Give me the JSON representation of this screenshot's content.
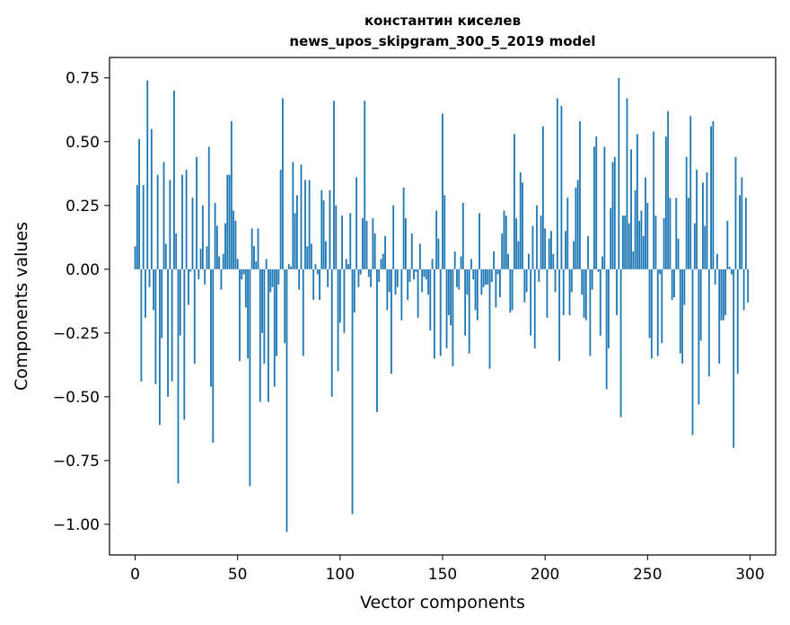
{
  "chart_data": {
    "type": "bar",
    "title": "константин киселев",
    "subtitle": "news_upos_skipgram_300_5_2019 model",
    "xlabel": "Vector components",
    "ylabel": "Components values",
    "xlim": [
      -12.5,
      312.5
    ],
    "ylim": [
      -1.12,
      0.83
    ],
    "xticks": [
      0,
      50,
      100,
      150,
      200,
      250,
      300
    ],
    "xtick_labels": [
      "0",
      "50",
      "100",
      "150",
      "200",
      "250",
      "300"
    ],
    "yticks": [
      0.75,
      0.5,
      0.25,
      0.0,
      -0.25,
      -0.5,
      -0.75,
      -1.0
    ],
    "ytick_labels": [
      "0.75",
      "0.50",
      "0.25",
      "0.00",
      "−0.25",
      "−0.50",
      "−0.75",
      "−1.00"
    ],
    "grid": false,
    "color": "#1f77b4",
    "x": [
      0,
      1,
      2,
      3,
      4,
      5,
      6,
      7,
      8,
      9,
      10,
      11,
      12,
      13,
      14,
      15,
      16,
      17,
      18,
      19,
      20,
      21,
      22,
      23,
      24,
      25,
      26,
      27,
      28,
      29,
      30,
      31,
      32,
      33,
      34,
      35,
      36,
      37,
      38,
      39,
      40,
      41,
      42,
      43,
      44,
      45,
      46,
      47,
      48,
      49,
      50,
      51,
      52,
      53,
      54,
      55,
      56,
      57,
      58,
      59,
      60,
      61,
      62,
      63,
      64,
      65,
      66,
      67,
      68,
      69,
      70,
      71,
      72,
      73,
      74,
      75,
      76,
      77,
      78,
      79,
      80,
      81,
      82,
      83,
      84,
      85,
      86,
      87,
      88,
      89,
      90,
      91,
      92,
      93,
      94,
      95,
      96,
      97,
      98,
      99,
      100,
      101,
      102,
      103,
      104,
      105,
      106,
      107,
      108,
      109,
      110,
      111,
      112,
      113,
      114,
      115,
      116,
      117,
      118,
      119,
      120,
      121,
      122,
      123,
      124,
      125,
      126,
      127,
      128,
      129,
      130,
      131,
      132,
      133,
      134,
      135,
      136,
      137,
      138,
      139,
      140,
      141,
      142,
      143,
      144,
      145,
      146,
      147,
      148,
      149,
      150,
      151,
      152,
      153,
      154,
      155,
      156,
      157,
      158,
      159,
      160,
      161,
      162,
      163,
      164,
      165,
      166,
      167,
      168,
      169,
      170,
      171,
      172,
      173,
      174,
      175,
      176,
      177,
      178,
      179,
      180,
      181,
      182,
      183,
      184,
      185,
      186,
      187,
      188,
      189,
      190,
      191,
      192,
      193,
      194,
      195,
      196,
      197,
      198,
      199,
      200,
      201,
      202,
      203,
      204,
      205,
      206,
      207,
      208,
      209,
      210,
      211,
      212,
      213,
      214,
      215,
      216,
      217,
      218,
      219,
      220,
      221,
      222,
      223,
      224,
      225,
      226,
      227,
      228,
      229,
      230,
      231,
      232,
      233,
      234,
      235,
      236,
      237,
      238,
      239,
      240,
      241,
      242,
      243,
      244,
      245,
      246,
      247,
      248,
      249,
      250,
      251,
      252,
      253,
      254,
      255,
      256,
      257,
      258,
      259,
      260,
      261,
      262,
      263,
      264,
      265,
      266,
      267,
      268,
      269,
      270,
      271,
      272,
      273,
      274,
      275,
      276,
      277,
      278,
      279,
      280,
      281,
      282,
      283,
      284,
      285,
      286,
      287,
      288,
      289,
      290,
      291,
      292,
      293,
      294,
      295,
      296,
      297,
      298,
      299
    ],
    "values": [
      0.09,
      0.33,
      0.51,
      -0.44,
      0.33,
      -0.19,
      0.74,
      -0.07,
      0.55,
      -0.16,
      -0.45,
      0.37,
      -0.61,
      -0.27,
      0.42,
      0.1,
      -0.5,
      0.35,
      -0.44,
      0.7,
      0.14,
      -0.84,
      -0.26,
      0.37,
      -0.59,
      0.39,
      -0.14,
      -0.01,
      0.28,
      -0.37,
      0.44,
      -0.04,
      0.08,
      0.25,
      -0.06,
      0.09,
      0.48,
      -0.46,
      -0.68,
      0.26,
      0.17,
      0.05,
      -0.08,
      0.06,
      0.18,
      0.37,
      0.37,
      0.58,
      0.23,
      0.19,
      0.04,
      -0.36,
      -0.04,
      -0.02,
      -0.15,
      -0.35,
      -0.85,
      0.16,
      0.09,
      0.03,
      0.16,
      -0.52,
      -0.25,
      -0.37,
      0.04,
      -0.52,
      -0.09,
      -0.07,
      -0.46,
      -0.34,
      -0.06,
      0.39,
      0.67,
      -0.29,
      -1.03,
      0.02,
      0.01,
      0.42,
      0.22,
      0.29,
      -0.08,
      0.41,
      -0.34,
      0.35,
      0.09,
      0.35,
      0.1,
      -0.12,
      0.02,
      -0.02,
      -0.12,
      0.31,
      0.27,
      0.11,
      -0.07,
      0.31,
      -0.5,
      0.66,
      0.25,
      -0.4,
      -0.21,
      0.21,
      -0.25,
      0.04,
      0.02,
      0.22,
      -0.96,
      -0.17,
      0.36,
      -0.07,
      -0.02,
      0.2,
      0.66,
      0.19,
      -0.03,
      -0.07,
      0.2,
      0.14,
      -0.56,
      -0.05,
      0.04,
      0.06,
      0.13,
      -0.16,
      -0.09,
      -0.41,
      0.25,
      -0.1,
      -0.07,
      0.0,
      -0.2,
      0.32,
      0.2,
      -0.12,
      -0.05,
      0.14,
      -0.04,
      -0.01,
      -0.19,
      0.1,
      -0.09,
      -0.03,
      -0.04,
      -0.1,
      -0.24,
      0.04,
      -0.35,
      0.23,
      0.12,
      -0.34,
      0.61,
      0.29,
      -0.31,
      -0.18,
      -0.22,
      -0.38,
      0.07,
      -0.07,
      -0.08,
      0.05,
      0.26,
      -0.26,
      -0.1,
      -0.33,
      0.04,
      -0.04,
      -0.16,
      -0.2,
      0.22,
      -0.1,
      -0.07,
      -0.06,
      -0.06,
      -0.39,
      -0.05,
      0.07,
      -0.15,
      -0.02,
      -0.11,
      0.14,
      0.23,
      0.21,
      0.06,
      -0.17,
      -0.16,
      0.53,
      0.2,
      0.11,
      0.38,
      0.34,
      -0.13,
      -0.09,
      0.06,
      -0.26,
      0.17,
      -0.31,
      0.25,
      -0.05,
      0.21,
      0.56,
      0.16,
      -0.19,
      0.12,
      0.15,
      0.06,
      -0.09,
      0.67,
      -0.36,
      0.64,
      -0.18,
      0.15,
      0.28,
      -0.18,
      -0.09,
      0.11,
      0.32,
      0.35,
      0.58,
      -0.1,
      -0.19,
      -0.2,
      0.13,
      -0.34,
      -0.08,
      0.48,
      0.52,
      -0.01,
      -0.26,
      0.05,
      0.48,
      -0.47,
      -0.31,
      0.24,
      0.42,
      0.44,
      -0.18,
      0.75,
      -0.58,
      0.21,
      0.21,
      0.67,
      0.18,
      0.47,
      0.07,
      0.31,
      0.53,
      0.19,
      0.23,
      0.13,
      0.36,
      0.26,
      -0.27,
      -0.35,
      0.54,
      0.21,
      -0.34,
      -0.02,
      -0.29,
      0.2,
      0.52,
      0.62,
      0.28,
      -0.12,
      -0.11,
      0.28,
      0.12,
      -0.33,
      -0.37,
      -0.14,
      0.44,
      0.28,
      0.6,
      -0.65,
      0.18,
      0.39,
      -0.53,
      -0.28,
      0.34,
      0.17,
      0.38,
      -0.42,
      0.56,
      0.58,
      -0.06,
      0.06,
      -0.37,
      -0.2,
      -0.2,
      -0.18,
      0.19,
      0.01,
      -0.02,
      -0.7,
      0.44,
      -0.41,
      0.29,
      0.36,
      -0.16,
      0.28,
      -0.13
    ]
  }
}
